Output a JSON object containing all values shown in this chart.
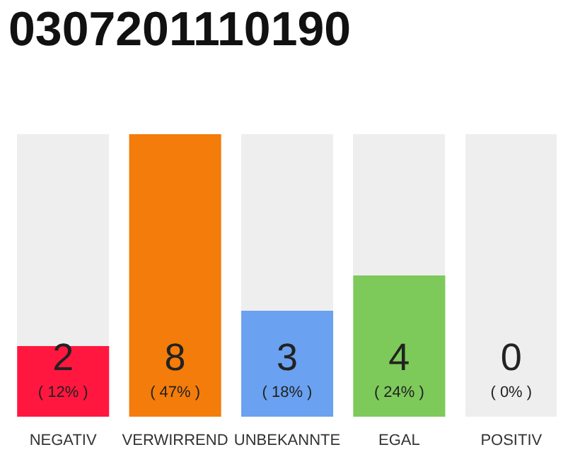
{
  "chart_data": {
    "type": "bar",
    "title": "0307201110190",
    "categories": [
      "NEGATIV",
      "VERWIRREND",
      "UNBEKANNTE",
      "EGAL",
      "POSITIV"
    ],
    "values": [
      2,
      8,
      3,
      4,
      0
    ],
    "colors": [
      "#ff173f",
      "#f47c0a",
      "#6aa1f0",
      "#7dca5a",
      "#cccccc"
    ],
    "data_labels": true,
    "annotations": [
      "( 12% )",
      "( 47% )",
      "( 18% )",
      "( 24% )",
      "( 0% )"
    ]
  }
}
